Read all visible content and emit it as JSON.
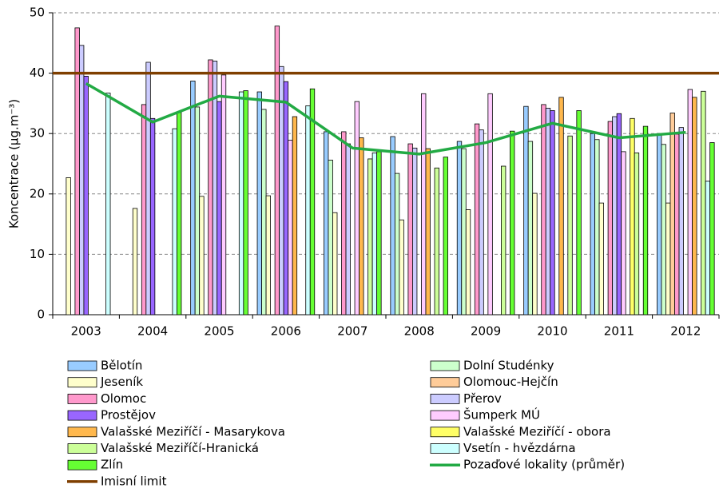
{
  "chart_data": {
    "type": "bar",
    "y_label": "Koncentrace (µg.m⁻³)",
    "categories": [
      "2003",
      "2004",
      "2005",
      "2006",
      "2007",
      "2008",
      "2009",
      "2010",
      "2011",
      "2012"
    ],
    "ylim": [
      0,
      50
    ],
    "yticks": [
      0,
      10,
      20,
      30,
      40,
      50
    ],
    "grid": true,
    "series": [
      {
        "name": "Bělotín",
        "color": "#99ccff",
        "values": [
          null,
          null,
          38.7,
          36.9,
          30.3,
          29.5,
          28.7,
          34.5,
          30.0,
          30.0
        ]
      },
      {
        "name": "Dolní Studénky",
        "color": "#ccffcc",
        "values": [
          null,
          null,
          34.4,
          34.0,
          25.6,
          23.4,
          27.5,
          28.7,
          29.0,
          28.2
        ]
      },
      {
        "name": "Jeseník",
        "color": "#ffffcc",
        "values": [
          22.7,
          17.6,
          19.6,
          19.7,
          16.9,
          15.7,
          17.4,
          20.1,
          18.5,
          18.5
        ]
      },
      {
        "name": "Olomouc-Hejčín",
        "color": "#ffcc99",
        "values": [
          null,
          null,
          null,
          null,
          null,
          null,
          null,
          null,
          null,
          33.4
        ]
      },
      {
        "name": "Olomoc",
        "color": "#ff99cc",
        "values": [
          47.5,
          34.8,
          42.2,
          47.8,
          30.3,
          28.3,
          31.6,
          34.8,
          32.0,
          29.9
        ]
      },
      {
        "name": "Přerov",
        "color": "#ccccff",
        "values": [
          44.6,
          41.8,
          42.0,
          41.1,
          28.3,
          27.6,
          30.6,
          34.2,
          32.8,
          31.0
        ]
      },
      {
        "name": "Prostějov",
        "color": "#9966ff",
        "values": [
          39.5,
          32.5,
          35.3,
          38.6,
          null,
          null,
          null,
          33.8,
          33.3,
          null
        ]
      },
      {
        "name": "Šumperk MÚ",
        "color": "#ffccff",
        "values": [
          null,
          null,
          39.7,
          28.9,
          35.3,
          36.6,
          36.6,
          null,
          27.0,
          37.3
        ]
      },
      {
        "name": "Valašské Meziříčí - Masarykova",
        "color": "#ffb84d",
        "values": [
          null,
          null,
          null,
          32.8,
          29.3,
          27.5,
          null,
          36.0,
          null,
          36.0
        ]
      },
      {
        "name": "Valašské Meziříčí - obora",
        "color": "#ffff66",
        "values": [
          null,
          null,
          null,
          null,
          null,
          null,
          null,
          null,
          32.5,
          null
        ]
      },
      {
        "name": "Valašské Meziříčí-Hranická",
        "color": "#ccff99",
        "values": [
          null,
          null,
          null,
          null,
          25.8,
          24.3,
          24.6,
          29.6,
          26.8,
          37.0
        ]
      },
      {
        "name": "Vsetín - hvězdárna",
        "color": "#ccffff",
        "values": [
          36.7,
          30.8,
          36.9,
          34.6,
          26.8,
          null,
          null,
          null,
          null,
          22.1
        ]
      },
      {
        "name": "Zlín",
        "color": "#66ff33",
        "values": [
          null,
          33.5,
          37.1,
          37.4,
          27.0,
          26.1,
          30.4,
          33.8,
          31.2,
          28.5
        ]
      },
      {
        "name": "Pozaďové lokality (průměr)",
        "type": "line",
        "color": "#22aa44",
        "values": [
          38.3,
          31.9,
          36.2,
          35.2,
          27.6,
          26.6,
          28.5,
          31.7,
          29.3,
          30.2
        ]
      }
    ],
    "limit": {
      "name": "Imisní limit",
      "value": 40,
      "color": "#7f3f00"
    }
  }
}
